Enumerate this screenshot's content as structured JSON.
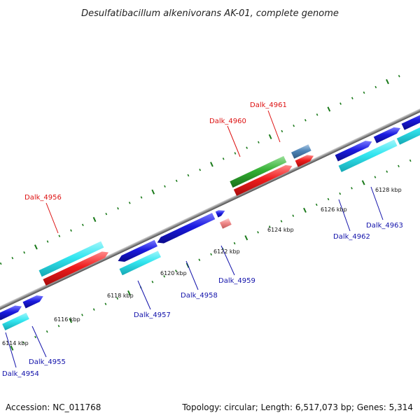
{
  "title": "Desulfatibacillum alkenivorans AK-01, complete genome",
  "footer": {
    "accession": "Accession: NC_011768",
    "summary": "Topology: circular; Length: 6,517,073 bp; Genes: 5,314"
  },
  "colors": {
    "backbone": "#8c8c8c",
    "tick": "#1a7a1a",
    "label_red": "#dd1111",
    "label_blue": "#1111aa",
    "cyan": "#33e6f0",
    "red": "#ee1c1c",
    "blue": "#1a1ae0",
    "green": "#33b033",
    "steelblue": "#4f86b8",
    "pink": "#f08a8a"
  },
  "tick_labels": [
    "6114 kbp",
    "6116 kbp",
    "6118 kbp",
    "6120 kbp",
    "6122 kbp",
    "6124 kbp",
    "6126 kbp",
    "6128 kbp"
  ],
  "gene_labels": [
    "Dalk_4954",
    "Dalk_4955",
    "Dalk_4956",
    "Dalk_4957",
    "Dalk_4958",
    "Dalk_4959",
    "Dalk_4960",
    "Dalk_4961",
    "Dalk_4962",
    "Dalk_4963"
  ]
}
